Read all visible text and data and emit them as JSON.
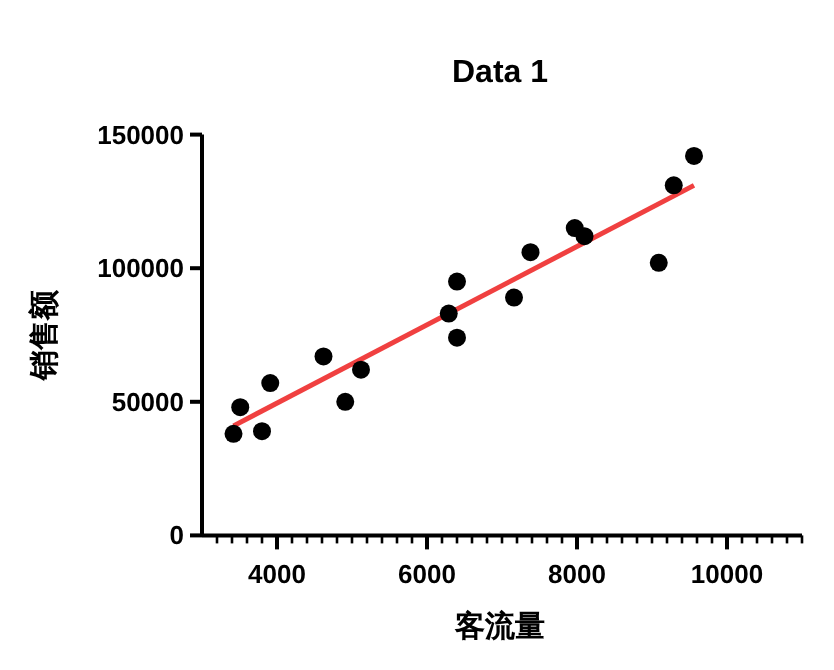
{
  "chart_data": {
    "type": "scatter",
    "title": "Data 1",
    "xlabel": "客流量",
    "ylabel": "销售额",
    "xlim": [
      3000,
      11000
    ],
    "ylim": [
      0,
      150000
    ],
    "xticks": [
      {
        "value": 3200,
        "label": null
      },
      {
        "value": 3400,
        "label": null
      },
      {
        "value": 3600,
        "label": null
      },
      {
        "value": 3800,
        "label": null
      },
      4000,
      {
        "value": 4200,
        "label": null
      },
      {
        "value": 4400,
        "label": null
      },
      {
        "value": 4600,
        "label": null
      },
      {
        "value": 4800,
        "label": null
      },
      {
        "value": 5000,
        "label": null
      },
      {
        "value": 5200,
        "label": null
      },
      {
        "value": 5400,
        "label": null
      },
      {
        "value": 5600,
        "label": null
      },
      {
        "value": 5800,
        "label": null
      },
      6000,
      {
        "value": 6200,
        "label": null
      },
      {
        "value": 6400,
        "label": null
      },
      {
        "value": 6600,
        "label": null
      },
      {
        "value": 6800,
        "label": null
      },
      {
        "value": 7000,
        "label": null
      },
      {
        "value": 7200,
        "label": null
      },
      {
        "value": 7400,
        "label": null
      },
      {
        "value": 7600,
        "label": null
      },
      {
        "value": 7800,
        "label": null
      },
      8000,
      {
        "value": 8200,
        "label": null
      },
      {
        "value": 8400,
        "label": null
      },
      {
        "value": 8600,
        "label": null
      },
      {
        "value": 8800,
        "label": null
      },
      {
        "value": 9000,
        "label": null
      },
      {
        "value": 9200,
        "label": null
      },
      {
        "value": 9400,
        "label": null
      },
      {
        "value": 9600,
        "label": null
      },
      {
        "value": 9800,
        "label": null
      },
      10000,
      {
        "value": 10200,
        "label": null
      },
      {
        "value": 10400,
        "label": null
      },
      {
        "value": 10600,
        "label": null
      },
      {
        "value": 10800,
        "label": null
      },
      {
        "value": 11000,
        "label": null
      }
    ],
    "yticks": [
      0,
      50000,
      100000,
      150000
    ],
    "grid": false,
    "series": [
      {
        "color": "#000000",
        "marker": "circle",
        "x": [
          3420,
          3510,
          3800,
          3910,
          4620,
          4910,
          5120,
          6290,
          6400,
          6400,
          7160,
          7380,
          7970,
          8100,
          9090,
          9290,
          9560
        ],
        "values": [
          38000,
          48000,
          39000,
          57000,
          67000,
          50000,
          62000,
          83000,
          95000,
          74000,
          89000,
          106000,
          115000,
          112000,
          102000,
          131000,
          142000
        ]
      },
      {
        "type": "line",
        "color": "#f04040",
        "marker": "none",
        "line_style": "solid",
        "x": [
          3420,
          9560
        ],
        "values": [
          41000,
          131000
        ]
      }
    ]
  }
}
